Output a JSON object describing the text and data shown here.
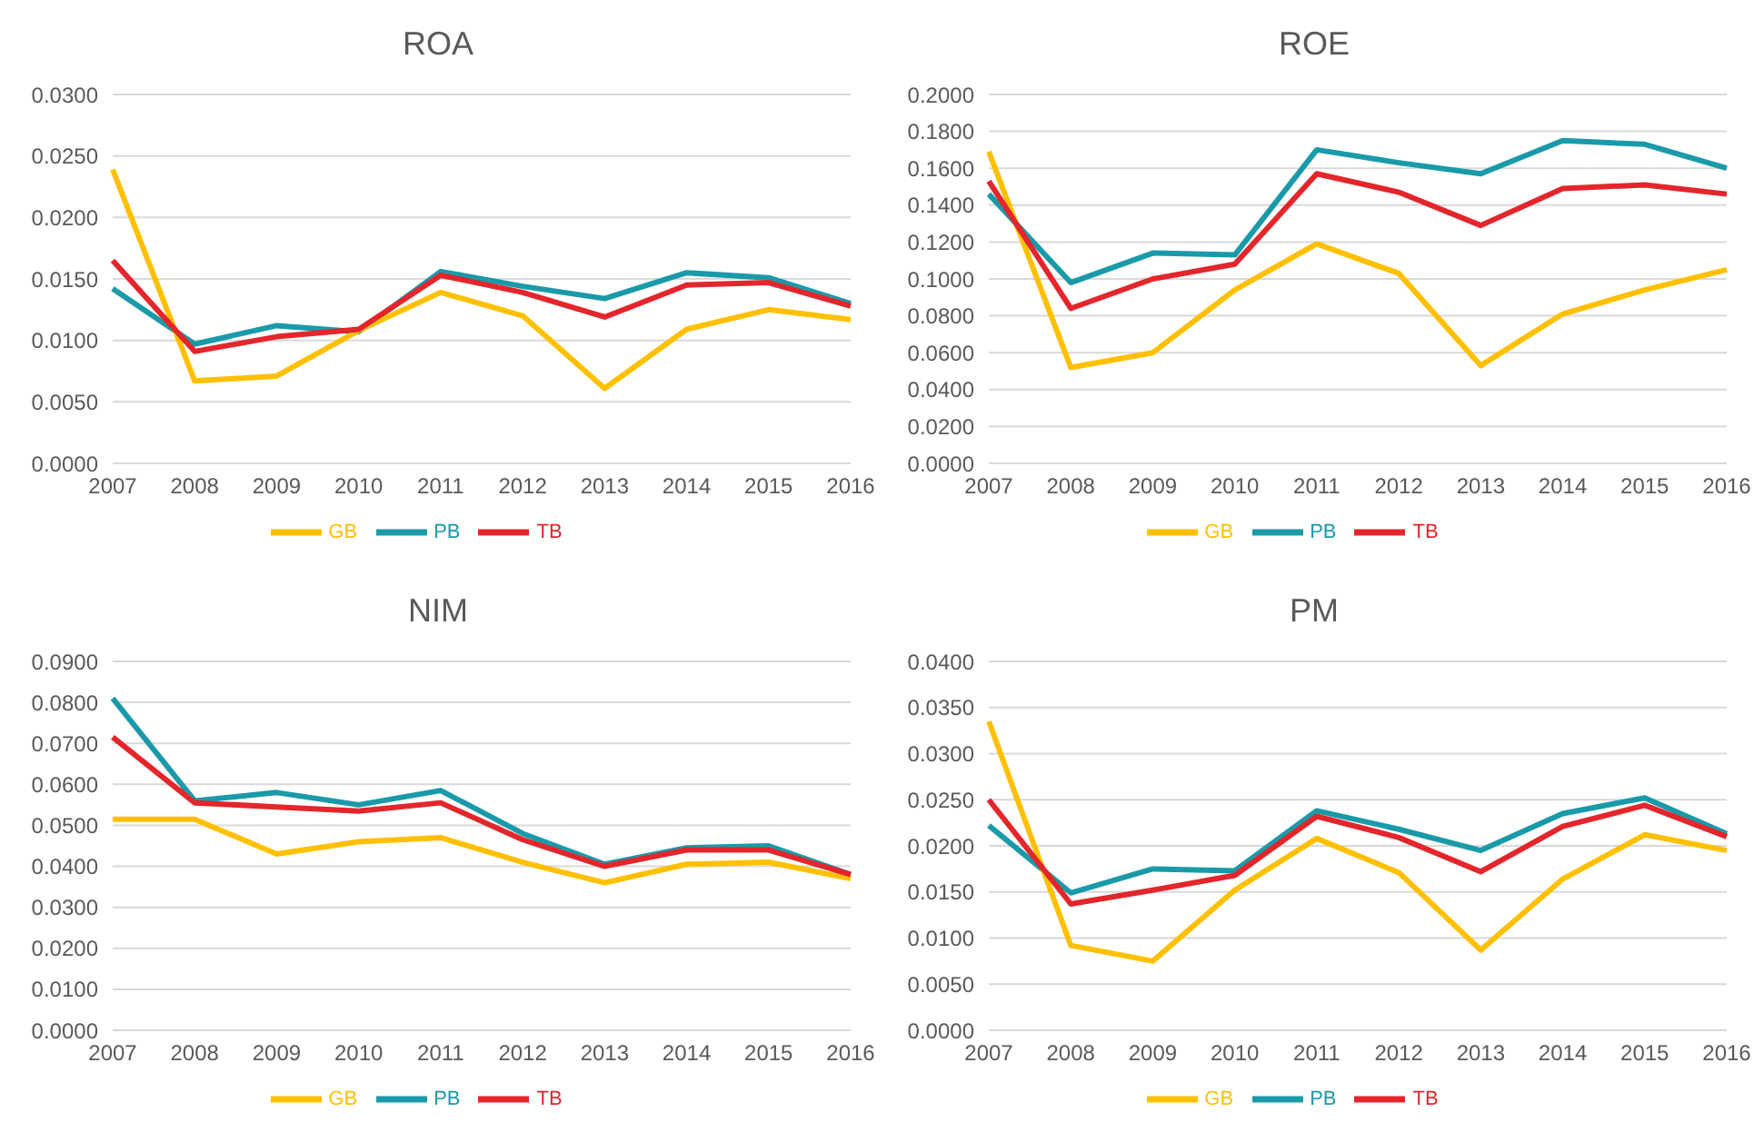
{
  "chart_data": [
    {
      "type": "line",
      "title": "ROA",
      "categories": [
        "2007",
        "2008",
        "2009",
        "2010",
        "2011",
        "2012",
        "2013",
        "2014",
        "2015",
        "2016"
      ],
      "series": [
        {
          "name": "PB",
          "color": "#1a9aa9",
          "values": [
            0.0142,
            0.0097,
            0.0112,
            0.0107,
            0.0156,
            0.0144,
            0.0134,
            0.0155,
            0.0151,
            0.013
          ]
        },
        {
          "name": "GB",
          "color": "#ffc000",
          "values": [
            0.0239,
            0.0067,
            0.0071,
            0.0108,
            0.0139,
            0.012,
            0.0061,
            0.0109,
            0.0125,
            0.0117
          ]
        },
        {
          "name": "TB",
          "color": "#e3262c",
          "values": [
            0.0165,
            0.0091,
            0.0103,
            0.0109,
            0.0153,
            0.0139,
            0.0119,
            0.0145,
            0.0147,
            0.0128
          ]
        }
      ],
      "ylim": [
        0,
        0.03
      ],
      "yticks": [
        {
          "value": 0,
          "label": "0.0000"
        },
        {
          "value": 0.005,
          "label": "0.0050"
        },
        {
          "value": 0.01,
          "label": "0.0100"
        },
        {
          "value": 0.015,
          "label": "0.0150"
        },
        {
          "value": 0.02,
          "label": "0.0200"
        },
        {
          "value": 0.025,
          "label": "0.0250"
        },
        {
          "value": 0.03,
          "label": "0.0300"
        }
      ],
      "grid": "y",
      "legend": "bottom",
      "marker": "none",
      "line_style": "solid"
    },
    {
      "type": "line",
      "title": "ROE",
      "categories": [
        "2007",
        "2008",
        "2009",
        "2010",
        "2011",
        "2012",
        "2013",
        "2014",
        "2015",
        "2016"
      ],
      "series": [
        {
          "name": "PB",
          "color": "#1a9aa9",
          "values": [
            0.146,
            0.098,
            0.114,
            0.113,
            0.17,
            0.163,
            0.157,
            0.175,
            0.173,
            0.16
          ]
        },
        {
          "name": "GB",
          "color": "#ffc000",
          "values": [
            0.169,
            0.052,
            0.06,
            0.094,
            0.119,
            0.103,
            0.053,
            0.081,
            0.094,
            0.105
          ]
        },
        {
          "name": "TB",
          "color": "#e3262c",
          "values": [
            0.153,
            0.084,
            0.1,
            0.108,
            0.157,
            0.147,
            0.129,
            0.149,
            0.151,
            0.146
          ]
        }
      ],
      "ylim": [
        0,
        0.2
      ],
      "yticks": [
        {
          "value": 0,
          "label": "0.0000"
        },
        {
          "value": 0.02,
          "label": "0.0200"
        },
        {
          "value": 0.04,
          "label": "0.0400"
        },
        {
          "value": 0.06,
          "label": "0.0600"
        },
        {
          "value": 0.08,
          "label": "0.0800"
        },
        {
          "value": 0.1,
          "label": "0.1000"
        },
        {
          "value": 0.12,
          "label": "0.1200"
        },
        {
          "value": 0.14,
          "label": "0.1400"
        },
        {
          "value": 0.16,
          "label": "0.1600"
        },
        {
          "value": 0.18,
          "label": "0.1800"
        },
        {
          "value": 0.2,
          "label": "0.2000"
        }
      ],
      "grid": "y",
      "legend": "bottom",
      "marker": "none",
      "line_style": "solid"
    },
    {
      "type": "line",
      "title": "NIM",
      "categories": [
        "2007",
        "2008",
        "2009",
        "2010",
        "2011",
        "2012",
        "2013",
        "2014",
        "2015",
        "2016"
      ],
      "series": [
        {
          "name": "PB",
          "color": "#1a9aa9",
          "values": [
            0.081,
            0.056,
            0.058,
            0.055,
            0.0585,
            0.048,
            0.0405,
            0.0445,
            0.045,
            0.038
          ]
        },
        {
          "name": "GB",
          "color": "#ffc000",
          "values": [
            0.0515,
            0.0515,
            0.043,
            0.046,
            0.047,
            0.041,
            0.036,
            0.0405,
            0.041,
            0.037
          ]
        },
        {
          "name": "TB",
          "color": "#e3262c",
          "values": [
            0.0715,
            0.0555,
            0.0545,
            0.0535,
            0.0555,
            0.0465,
            0.04,
            0.044,
            0.044,
            0.038
          ]
        }
      ],
      "ylim": [
        0,
        0.09
      ],
      "yticks": [
        {
          "value": 0,
          "label": "0.0000"
        },
        {
          "value": 0.01,
          "label": "0.0100"
        },
        {
          "value": 0.02,
          "label": "0.0200"
        },
        {
          "value": 0.03,
          "label": "0.0300"
        },
        {
          "value": 0.04,
          "label": "0.0400"
        },
        {
          "value": 0.05,
          "label": "0.0500"
        },
        {
          "value": 0.06,
          "label": "0.0600"
        },
        {
          "value": 0.07,
          "label": "0.0700"
        },
        {
          "value": 0.08,
          "label": "0.0800"
        },
        {
          "value": 0.09,
          "label": "0.0900"
        }
      ],
      "grid": "y",
      "legend": "bottom",
      "marker": "none",
      "line_style": "solid"
    },
    {
      "type": "line",
      "title": "PM",
      "categories": [
        "2007",
        "2008",
        "2009",
        "2010",
        "2011",
        "2012",
        "2013",
        "2014",
        "2015",
        "2016"
      ],
      "series": [
        {
          "name": "PB",
          "color": "#1a9aa9",
          "values": [
            0.0222,
            0.0149,
            0.0175,
            0.0173,
            0.0238,
            0.0218,
            0.0195,
            0.0235,
            0.0252,
            0.0213
          ]
        },
        {
          "name": "GB",
          "color": "#ffc000",
          "values": [
            0.0335,
            0.0092,
            0.0075,
            0.0152,
            0.0208,
            0.0171,
            0.0087,
            0.0164,
            0.0212,
            0.0195
          ]
        },
        {
          "name": "TB",
          "color": "#e3262c",
          "values": [
            0.025,
            0.0137,
            0.0152,
            0.0168,
            0.0232,
            0.0209,
            0.0172,
            0.0221,
            0.0244,
            0.021
          ]
        }
      ],
      "ylim": [
        0,
        0.04
      ],
      "yticks": [
        {
          "value": 0,
          "label": "0.0000"
        },
        {
          "value": 0.005,
          "label": "0.0050"
        },
        {
          "value": 0.01,
          "label": "0.0100"
        },
        {
          "value": 0.015,
          "label": "0.0150"
        },
        {
          "value": 0.02,
          "label": "0.0200"
        },
        {
          "value": 0.025,
          "label": "0.0250"
        },
        {
          "value": 0.03,
          "label": "0.0300"
        },
        {
          "value": 0.035,
          "label": "0.0350"
        },
        {
          "value": 0.04,
          "label": "0.0400"
        }
      ],
      "grid": "y",
      "legend": "bottom",
      "marker": "none",
      "line_style": "solid"
    }
  ]
}
